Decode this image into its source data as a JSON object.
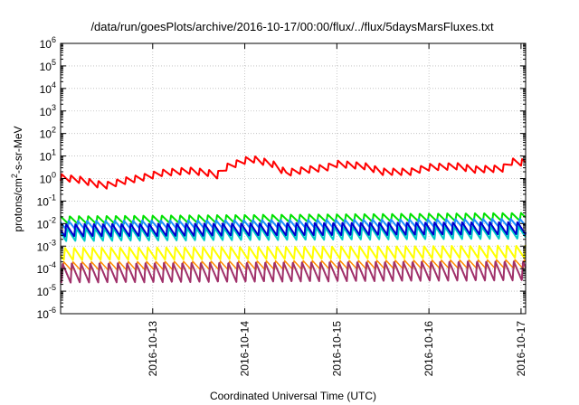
{
  "chart_data": {
    "type": "line",
    "title": "/data/run/goesPlots/archive/2016-10-17/00:00/flux/../flux/5daysMarsFluxes.txt",
    "xlabel": "Coordinated Universal Time (UTC)",
    "ylabel_main": "protons/cm",
    "ylabel_sup": "2",
    "ylabel_rest": "-s-sr-MeV",
    "yscale": "log",
    "ylim_exp": [
      -6,
      6
    ],
    "xlim_days": [
      0,
      5.05
    ],
    "grid": true,
    "x_ticks": [
      {
        "day": 1.0,
        "label": "2016-10-13"
      },
      {
        "day": 2.0,
        "label": "2016-10-14"
      },
      {
        "day": 3.0,
        "label": "2016-10-15"
      },
      {
        "day": 4.0,
        "label": "2016-10-16"
      },
      {
        "day": 5.0,
        "label": "2016-10-17"
      }
    ],
    "y_ticks": [
      {
        "base": "10",
        "exp": "-6",
        "value": -6
      },
      {
        "base": "10",
        "exp": "-5",
        "value": -5
      },
      {
        "base": "10",
        "exp": "-4",
        "value": -4
      },
      {
        "base": "10",
        "exp": "-3",
        "value": -3
      },
      {
        "base": "10",
        "exp": "-2",
        "value": -2
      },
      {
        "base": "10",
        "exp": "-1",
        "value": -1
      },
      {
        "base": "10",
        "exp": "0",
        "value": 0
      },
      {
        "base": "10",
        "exp": "1",
        "value": 1
      },
      {
        "base": "10",
        "exp": "2",
        "value": 2
      },
      {
        "base": "10",
        "exp": "3",
        "value": 3
      },
      {
        "base": "10",
        "exp": "4",
        "value": 4
      },
      {
        "base": "10",
        "exp": "5",
        "value": 5
      },
      {
        "base": "10",
        "exp": "6",
        "value": 6
      }
    ],
    "series": [
      {
        "color": "#ff0000",
        "baseline": [
          [
            0,
            0.05
          ],
          [
            0.2,
            -0.05
          ],
          [
            0.4,
            -0.25
          ],
          [
            0.5,
            -0.3
          ],
          [
            0.7,
            -0.1
          ],
          [
            0.9,
            0.05
          ],
          [
            1.1,
            0.25
          ],
          [
            1.4,
            0.35
          ],
          [
            1.6,
            0.25
          ],
          [
            1.7,
            0.15
          ],
          [
            1.8,
            0.5
          ],
          [
            2.0,
            0.8
          ],
          [
            2.1,
            0.85
          ],
          [
            2.3,
            0.65
          ],
          [
            2.45,
            0.25
          ],
          [
            2.6,
            0.35
          ],
          [
            2.9,
            0.5
          ],
          [
            3.0,
            0.65
          ],
          [
            3.3,
            0.55
          ],
          [
            3.5,
            0.3
          ],
          [
            3.8,
            0.3
          ],
          [
            4.0,
            0.5
          ],
          [
            4.3,
            0.55
          ],
          [
            4.5,
            0.4
          ],
          [
            4.8,
            0.45
          ],
          [
            4.9,
            0.75
          ],
          [
            5.05,
            0.7
          ]
        ],
        "period": 0.1,
        "amp": 0.3,
        "lw": 2
      },
      {
        "color": "#00e000",
        "baseline": [
          [
            0,
            -1.85
          ],
          [
            5.05,
            -1.7
          ]
        ],
        "period": 0.1,
        "amp": 0.35,
        "lw": 2
      },
      {
        "color": "#1e90ff",
        "baseline": [
          [
            0,
            -2.1
          ],
          [
            5.05,
            -2.0
          ]
        ],
        "period": 0.1,
        "amp": 0.45,
        "lw": 2
      },
      {
        "color": "#00c8c8",
        "baseline": [
          [
            0,
            -2.5
          ],
          [
            5.05,
            -2.4
          ]
        ],
        "period": 0.1,
        "amp": 0.55,
        "lw": 2
      },
      {
        "color": "#0000cd",
        "baseline": [
          [
            0,
            -2.3
          ],
          [
            5.05,
            -2.2
          ]
        ],
        "period": 0.1,
        "amp": 0.55,
        "lw": 2
      },
      {
        "color": "#ffff00",
        "baseline": [
          [
            0,
            -3.35
          ],
          [
            5.05,
            -3.25
          ]
        ],
        "period": 0.1,
        "amp": 0.55,
        "lw": 2
      },
      {
        "color": "#ff8c00",
        "baseline": [
          [
            0,
            -3.9
          ],
          [
            5.05,
            -3.8
          ]
        ],
        "period": 0.1,
        "amp": 0.4,
        "lw": 1.5
      },
      {
        "color": "#a0306a",
        "baseline": [
          [
            0,
            -4.2
          ],
          [
            5.05,
            -4.1
          ]
        ],
        "period": 0.1,
        "amp": 0.85,
        "lw": 2
      }
    ]
  }
}
